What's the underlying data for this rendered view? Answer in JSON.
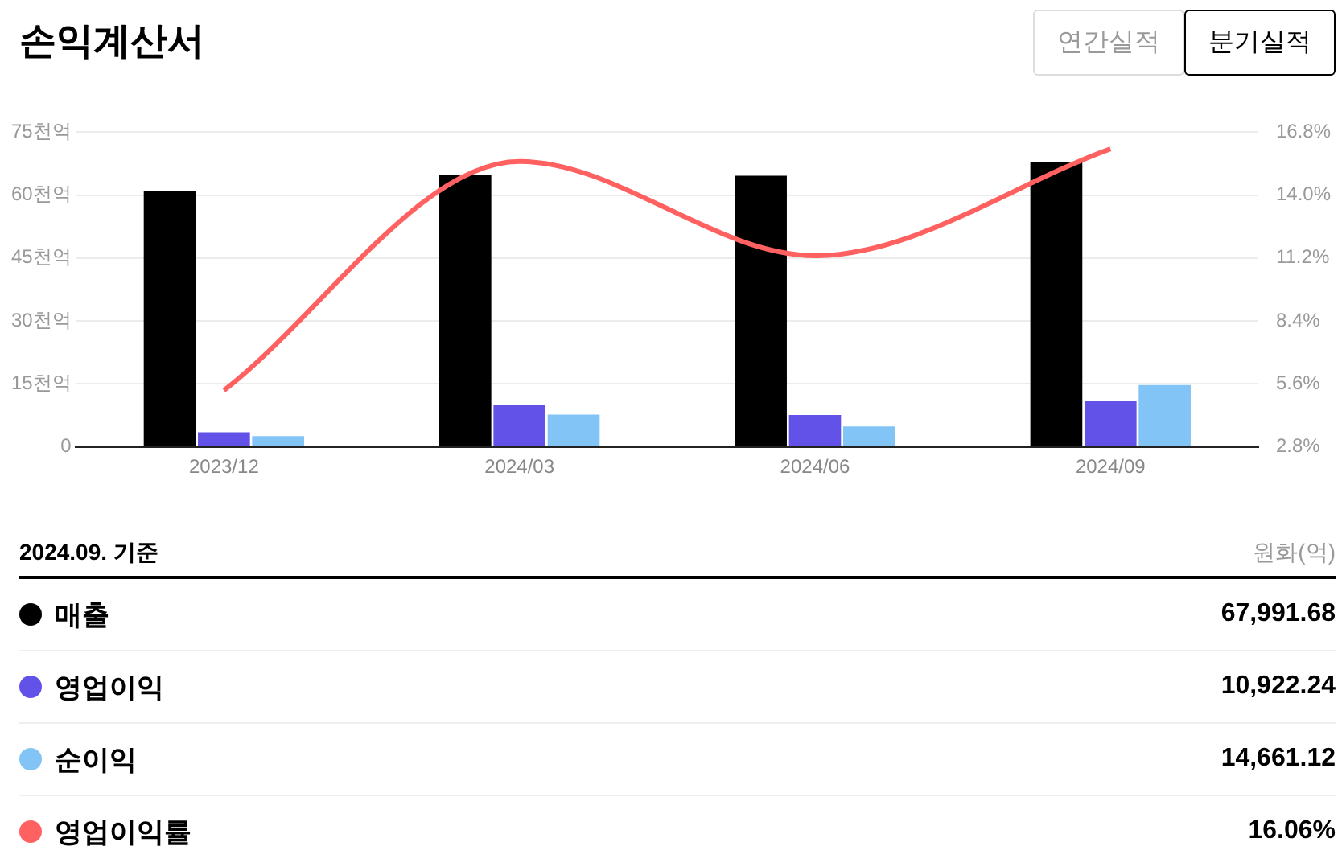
{
  "chart_data": {
    "type": "bar",
    "title": "손익계산서",
    "categories": [
      "2023/12",
      "2024/03",
      "2024/06",
      "2024/09"
    ],
    "series": [
      {
        "name": "매출",
        "color": "#000000",
        "values": [
          61.0,
          64.8,
          64.6,
          67.99
        ]
      },
      {
        "name": "영업이익",
        "color": "#6352e8",
        "values": [
          3.4,
          9.9,
          7.5,
          10.92
        ]
      },
      {
        "name": "순이익",
        "color": "#82c4f5",
        "values": [
          2.5,
          7.6,
          4.8,
          14.66
        ]
      },
      {
        "name": "영업이익률",
        "type": "line",
        "axis": "y2",
        "color": "#ff6161",
        "values": [
          5.3,
          15.5,
          11.3,
          16.06
        ]
      }
    ],
    "ylim": [
      0,
      75
    ],
    "yticks": [
      0,
      {
        "value": 15,
        "label": "15천억"
      },
      {
        "value": 30,
        "label": "30천억"
      },
      {
        "value": 45,
        "label": "45천억"
      },
      {
        "value": 60,
        "label": "60천억"
      },
      {
        "value": 75,
        "label": "75천억"
      }
    ],
    "y2lim": [
      2.8,
      16.8
    ],
    "y2ticks": [
      {
        "value": 2.8,
        "label": "2.8%"
      },
      {
        "value": 5.6,
        "label": "5.6%"
      },
      {
        "value": 8.4,
        "label": "8.4%"
      },
      {
        "value": 11.2,
        "label": "11.2%"
      },
      {
        "value": 14,
        "label": "14.0%"
      },
      {
        "value": 16.8,
        "label": "16.8%"
      }
    ],
    "grid": "y",
    "legend": "bottom",
    "marker": "none",
    "annotations": [
      "연간실적",
      "분기실적",
      "2024.09. 기준",
      "원화(억)",
      "67,991.68",
      "10,922.24",
      "14,661.12",
      "16.06%"
    ]
  }
}
